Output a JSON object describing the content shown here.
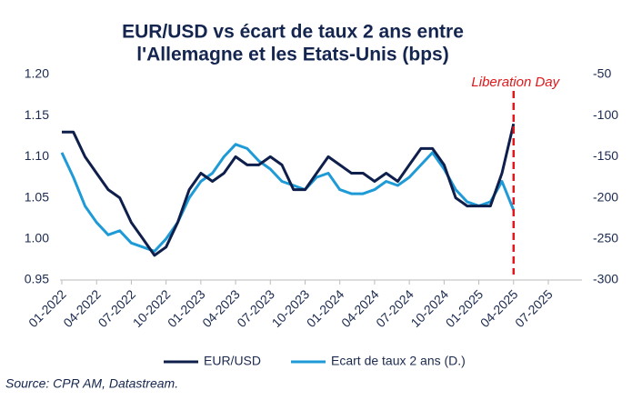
{
  "chart_data": {
    "type": "line",
    "title": [
      "EUR/USD vs écart de taux 2 ans entre",
      "l'Allemagne et les Etats-Unis (bps)"
    ],
    "x": [
      "01-2022",
      "02-2022",
      "03-2022",
      "04-2022",
      "05-2022",
      "06-2022",
      "07-2022",
      "08-2022",
      "09-2022",
      "10-2022",
      "11-2022",
      "12-2022",
      "01-2023",
      "02-2023",
      "03-2023",
      "04-2023",
      "05-2023",
      "06-2023",
      "07-2023",
      "08-2023",
      "09-2023",
      "10-2023",
      "11-2023",
      "12-2023",
      "01-2024",
      "02-2024",
      "03-2024",
      "04-2024",
      "05-2024",
      "06-2024",
      "07-2024",
      "08-2024",
      "09-2024",
      "10-2024",
      "11-2024",
      "12-2024",
      "01-2025",
      "02-2025",
      "03-2025",
      "04-2025"
    ],
    "series": [
      {
        "name": "EUR/USD",
        "color": "#0f1f4b",
        "values": [
          1.13,
          1.13,
          1.1,
          1.08,
          1.06,
          1.05,
          1.02,
          1.0,
          0.98,
          0.99,
          1.02,
          1.06,
          1.08,
          1.07,
          1.08,
          1.1,
          1.09,
          1.09,
          1.1,
          1.09,
          1.06,
          1.06,
          1.08,
          1.1,
          1.09,
          1.08,
          1.08,
          1.07,
          1.08,
          1.07,
          1.09,
          1.11,
          1.11,
          1.09,
          1.05,
          1.04,
          1.04,
          1.04,
          1.08,
          1.14
        ]
      },
      {
        "name": "Ecart de taux 2 ans (D.)",
        "color": "#1e9ad6",
        "axis": "y2",
        "values": [
          -145,
          -175,
          -210,
          -230,
          -245,
          -240,
          -255,
          -260,
          -265,
          -250,
          -230,
          -200,
          -180,
          -170,
          -150,
          -135,
          -140,
          -155,
          -165,
          -180,
          -185,
          -190,
          -175,
          -170,
          -190,
          -195,
          -195,
          -190,
          -180,
          -185,
          -175,
          -160,
          -145,
          -165,
          -190,
          -205,
          -210,
          -205,
          -180,
          -215
        ]
      }
    ],
    "xlim": [
      "01-2022",
      "07-2025"
    ],
    "xticks": [
      "01-2022",
      "04-2022",
      "07-2022",
      "10-2022",
      "01-2023",
      "04-2023",
      "07-2023",
      "10-2023",
      "01-2024",
      "04-2024",
      "07-2024",
      "10-2024",
      "01-2025",
      "04-2025",
      "07-2025"
    ],
    "ylim": [
      0.95,
      1.2
    ],
    "yticks": [
      {
        "value": 0.95,
        "label": "0.95"
      },
      {
        "value": 1.0,
        "label": "1.00"
      },
      {
        "value": 1.05,
        "label": "1.05"
      },
      {
        "value": 1.1,
        "label": "1.10"
      },
      {
        "value": 1.15,
        "label": "1.15"
      },
      {
        "value": 1.2,
        "label": "1.20"
      }
    ],
    "y2lim": [
      -300,
      -50
    ],
    "y2ticks": [
      -300,
      -250,
      -200,
      -150,
      -100,
      -50
    ],
    "annotation": {
      "x": "04-2025",
      "text": "Liberation Day",
      "color": "#e0181b"
    },
    "source": "Source: CPR AM, Datastream."
  }
}
